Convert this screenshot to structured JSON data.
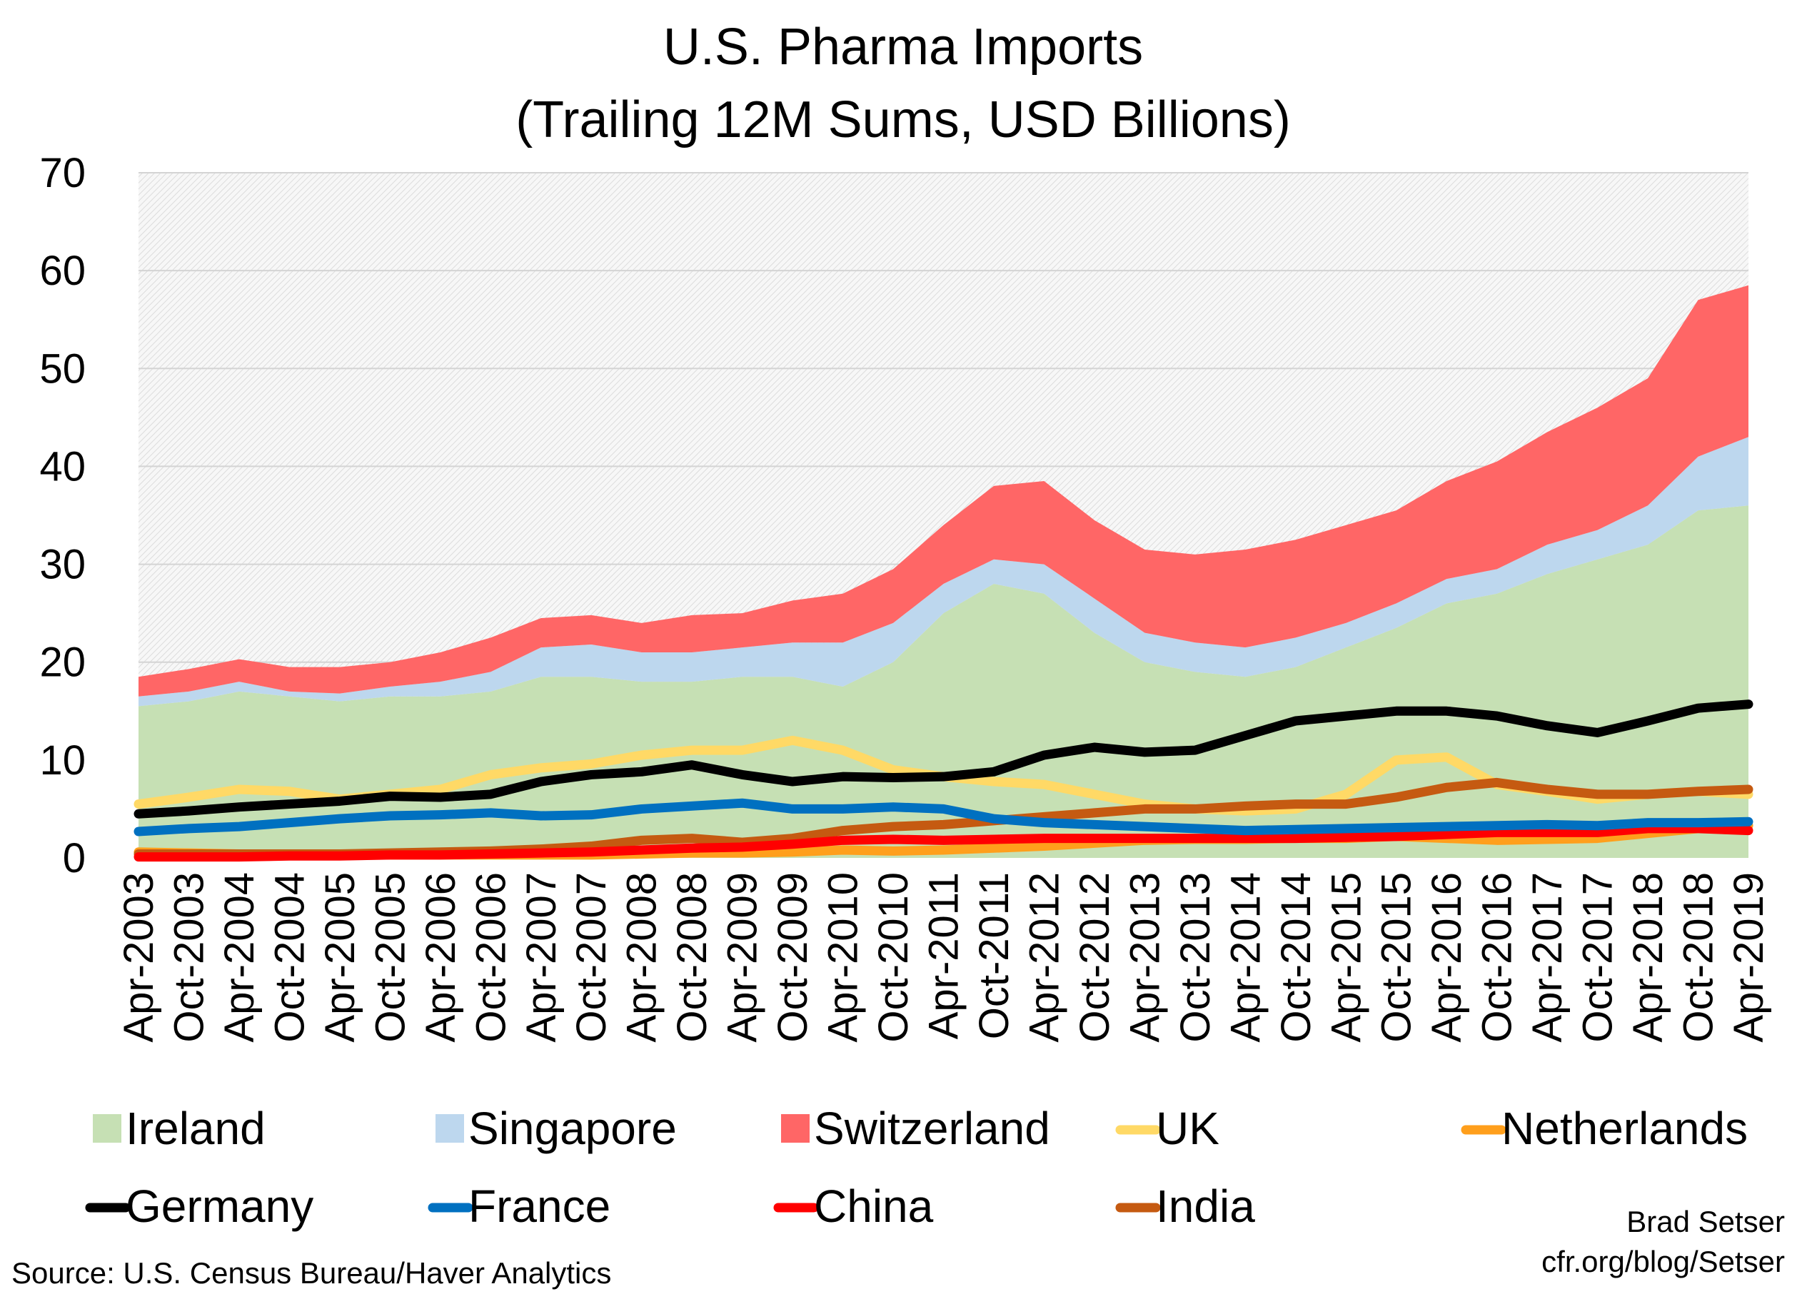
{
  "chart_data": {
    "type": "area",
    "title": "U.S. Pharma Imports",
    "subtitle": "(Trailing 12M Sums, USD Billions)",
    "xlabel": "",
    "ylabel": "",
    "ylim": [
      0,
      70
    ],
    "yticks": [
      0,
      10,
      20,
      30,
      40,
      50,
      60,
      70
    ],
    "grid": true,
    "legend_position": "bottom",
    "x": [
      "Apr-2003",
      "Oct-2003",
      "Apr-2004",
      "Oct-2004",
      "Apr-2005",
      "Oct-2005",
      "Apr-2006",
      "Oct-2006",
      "Apr-2007",
      "Oct-2007",
      "Apr-2008",
      "Oct-2008",
      "Apr-2009",
      "Oct-2009",
      "Apr-2010",
      "Oct-2010",
      "Apr-2011",
      "Oct-2011",
      "Apr-2012",
      "Oct-2012",
      "Apr-2013",
      "Oct-2013",
      "Apr-2014",
      "Oct-2014",
      "Apr-2015",
      "Oct-2015",
      "Apr-2016",
      "Oct-2016",
      "Apr-2017",
      "Oct-2017",
      "Apr-2018",
      "Oct-2018",
      "Apr-2019"
    ],
    "stacked_series": [
      {
        "name": "Ireland",
        "color": "#c6e0b4",
        "style": "stacked-area",
        "values": [
          15.5,
          16,
          17,
          16.5,
          16,
          16.5,
          16.5,
          17,
          18.5,
          18.5,
          18,
          18,
          18.5,
          18.5,
          17.5,
          20,
          25,
          28,
          27,
          23,
          20,
          19,
          18.5,
          19.5,
          21.5,
          23.5,
          26,
          27,
          29,
          30.5,
          32,
          35.5,
          36
        ]
      },
      {
        "name": "Singapore",
        "color": "#bdd7ee",
        "style": "stacked-area",
        "values": [
          1,
          1,
          1,
          0.5,
          0.8,
          1,
          1.5,
          2,
          3,
          3.3,
          3,
          3,
          3,
          3.5,
          4.5,
          4,
          3,
          2.5,
          3,
          3.5,
          3,
          3,
          3,
          3,
          2.5,
          2.5,
          2.5,
          2.5,
          3,
          3,
          4,
          5.5,
          7
        ]
      },
      {
        "name": "Switzerland",
        "color": "#ff6666",
        "style": "stacked-area",
        "values": [
          2,
          2.3,
          2.3,
          2.5,
          2.7,
          2.5,
          3,
          3.5,
          3,
          3,
          3,
          3.8,
          3.5,
          4.3,
          5,
          5.5,
          6,
          7.5,
          8.5,
          8,
          8.5,
          9,
          10,
          10,
          10,
          9.5,
          10,
          11,
          11.5,
          12.5,
          13,
          16,
          15.5
        ]
      }
    ],
    "line_series": [
      {
        "name": "UK",
        "color": "#ffd966",
        "values": [
          5.5,
          6.2,
          7,
          6.8,
          6,
          6.5,
          7,
          8.5,
          9.2,
          9.6,
          10.5,
          11,
          11,
          12,
          11,
          9,
          8.3,
          7.8,
          7.5,
          6.5,
          5.5,
          5,
          4.8,
          5,
          6.5,
          10,
          10.3,
          7.5,
          6.8,
          6,
          6.5,
          6.8,
          6.5
        ]
      },
      {
        "name": "Netherlands",
        "color": "#ff9f1c",
        "values": [
          0.6,
          0.5,
          0.4,
          0.3,
          0.3,
          0.3,
          0.3,
          0.3,
          0.3,
          0.3,
          0.4,
          0.5,
          0.5,
          0.6,
          0.8,
          0.7,
          0.8,
          1,
          1.2,
          1.5,
          1.8,
          1.9,
          1.9,
          2,
          2,
          2.2,
          2,
          1.8,
          1.9,
          2,
          2.5,
          3,
          3.3
        ]
      },
      {
        "name": "Germany",
        "color": "#000000",
        "values": [
          4.5,
          4.8,
          5.2,
          5.5,
          5.8,
          6.3,
          6.2,
          6.5,
          7.8,
          8.5,
          8.8,
          9.5,
          8.5,
          7.8,
          8.3,
          8.2,
          8.3,
          8.8,
          10.5,
          11.3,
          10.8,
          11,
          12.5,
          14,
          14.5,
          15,
          15,
          14.5,
          13.5,
          12.8,
          14,
          15.3,
          15.7
        ]
      },
      {
        "name": "France",
        "color": "#0070c0",
        "values": [
          2.7,
          3,
          3.2,
          3.6,
          4,
          4.3,
          4.4,
          4.6,
          4.3,
          4.4,
          5,
          5.3,
          5.6,
          5,
          5,
          5.2,
          5,
          4,
          3.6,
          3.4,
          3.2,
          3,
          2.8,
          2.9,
          3,
          3.1,
          3.2,
          3.3,
          3.4,
          3.3,
          3.6,
          3.6,
          3.7
        ]
      },
      {
        "name": "China",
        "color": "#ff0000",
        "values": [
          0.1,
          0.1,
          0.1,
          0.2,
          0.2,
          0.3,
          0.3,
          0.4,
          0.5,
          0.6,
          0.8,
          1,
          1.1,
          1.4,
          1.8,
          1.9,
          1.8,
          1.9,
          2,
          2,
          2,
          2,
          2,
          2,
          2.1,
          2.2,
          2.4,
          2.6,
          2.6,
          2.6,
          3,
          3,
          2.8
        ]
      },
      {
        "name": "India",
        "color": "#c55a11",
        "values": [
          0.4,
          0.4,
          0.4,
          0.4,
          0.4,
          0.5,
          0.6,
          0.7,
          0.9,
          1.2,
          1.8,
          2,
          1.6,
          2,
          2.8,
          3.2,
          3.4,
          3.8,
          4.2,
          4.6,
          5,
          5,
          5.3,
          5.5,
          5.5,
          6.2,
          7.2,
          7.7,
          7,
          6.5,
          6.5,
          6.8,
          7
        ]
      }
    ],
    "legend": [
      [
        "Ireland",
        "Singapore",
        "Switzerland",
        "UK",
        "Netherlands"
      ],
      [
        "Germany",
        "France",
        "China",
        "India"
      ]
    ]
  },
  "source": "Source: U.S. Census Bureau/Haver Analytics",
  "credit": {
    "author": "Brad Setser",
    "site": "cfr.org/blog/Setser"
  }
}
